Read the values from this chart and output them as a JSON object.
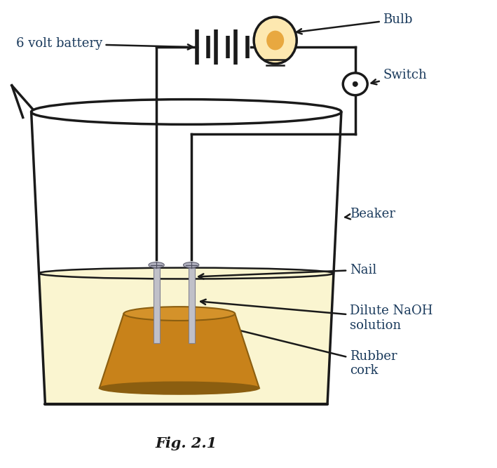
{
  "title": "Fig. 2.1",
  "bg_color": "#ffffff",
  "line_color": "#1a1a1a",
  "label_color": "#1a3a5c",
  "solution_color": "#faf5d0",
  "cork_color_main": "#c8821a",
  "cork_color_dark": "#8b5e10",
  "cork_color_light": "#d4922a",
  "nail_color": "#c0c0c8",
  "nail_edge": "#808090",
  "bulb_color": "#f5c880",
  "bulb_glow": "#fde8b0",
  "labels": {
    "battery": "6 volt battery",
    "bulb": "Bulb",
    "switch": "Switch",
    "beaker": "Beaker",
    "nail": "Nail",
    "solution": "Dilute NaOH\nsolution",
    "cork": "Rubber\ncork"
  }
}
